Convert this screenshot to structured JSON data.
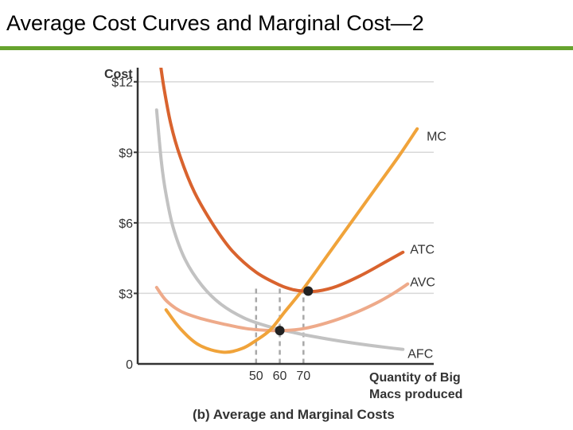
{
  "slide": {
    "title": "Average Cost Curves and Marginal Cost—2",
    "rule_color": "#66a32e"
  },
  "chart_data": {
    "type": "line",
    "title": "(b) Average and Marginal Costs",
    "ylabel": "Cost",
    "xlabel_lines": [
      "Quantity of Big",
      "Macs produced"
    ],
    "xlim": [
      0,
      125
    ],
    "ylim": [
      0,
      12.6
    ],
    "yticks": [
      {
        "value": 0,
        "label": "0"
      },
      {
        "value": 3,
        "label": "$3"
      },
      {
        "value": 6,
        "label": "$6"
      },
      {
        "value": 9,
        "label": "$9"
      },
      {
        "value": 12,
        "label": "$12"
      }
    ],
    "xticks": [
      {
        "value": 50,
        "label": "50"
      },
      {
        "value": 60,
        "label": "60"
      },
      {
        "value": 70,
        "label": "70"
      }
    ],
    "grid": "horizontal",
    "series": [
      {
        "name": "MC",
        "color": "#f0a33a",
        "width": 4,
        "points": [
          [
            12,
            2.3
          ],
          [
            18,
            1.5
          ],
          [
            26,
            0.8
          ],
          [
            36,
            0.5
          ],
          [
            44,
            0.65
          ],
          [
            50,
            1.0
          ],
          [
            56,
            1.45
          ],
          [
            62,
            2.2
          ],
          [
            70,
            3.2
          ],
          [
            80,
            4.6
          ],
          [
            90,
            6.0
          ],
          [
            100,
            7.4
          ],
          [
            110,
            8.8
          ],
          [
            118,
            10.0
          ]
        ]
      },
      {
        "name": "ATC",
        "color": "#d9632e",
        "width": 4,
        "points": [
          [
            9,
            13.2
          ],
          [
            11,
            11.8
          ],
          [
            14,
            10.2
          ],
          [
            18,
            8.8
          ],
          [
            24,
            7.3
          ],
          [
            32,
            5.9
          ],
          [
            40,
            4.8
          ],
          [
            50,
            3.9
          ],
          [
            60,
            3.35
          ],
          [
            66,
            3.15
          ],
          [
            70,
            3.1
          ],
          [
            76,
            3.1
          ],
          [
            84,
            3.3
          ],
          [
            94,
            3.75
          ],
          [
            104,
            4.3
          ],
          [
            112,
            4.75
          ]
        ]
      },
      {
        "name": "AVC",
        "color": "#eeaa8a",
        "width": 4,
        "points": [
          [
            8,
            3.25
          ],
          [
            12,
            2.7
          ],
          [
            18,
            2.25
          ],
          [
            26,
            1.95
          ],
          [
            36,
            1.7
          ],
          [
            46,
            1.5
          ],
          [
            56,
            1.42
          ],
          [
            62,
            1.42
          ],
          [
            70,
            1.5
          ],
          [
            80,
            1.75
          ],
          [
            90,
            2.1
          ],
          [
            100,
            2.55
          ],
          [
            108,
            3.0
          ],
          [
            114,
            3.4
          ]
        ]
      },
      {
        "name": "AFC",
        "color": "#c2c2c2",
        "width": 4,
        "points": [
          [
            8,
            10.8
          ],
          [
            10,
            8.6
          ],
          [
            12,
            7.2
          ],
          [
            15,
            5.8
          ],
          [
            20,
            4.45
          ],
          [
            27,
            3.35
          ],
          [
            35,
            2.55
          ],
          [
            45,
            1.95
          ],
          [
            55,
            1.6
          ],
          [
            65,
            1.35
          ],
          [
            75,
            1.15
          ],
          [
            90,
            0.9
          ],
          [
            105,
            0.7
          ],
          [
            112,
            0.62
          ]
        ]
      }
    ],
    "labels": [
      {
        "series": "MC",
        "text": "MC",
        "x": 122,
        "y": 9.7
      },
      {
        "series": "ATC",
        "text": "ATC",
        "x": 115,
        "y": 4.9
      },
      {
        "series": "AVC",
        "text": "AVC",
        "x": 115,
        "y": 3.5
      },
      {
        "series": "AFC",
        "text": "AFC",
        "x": 114,
        "y": 0.45
      }
    ],
    "points": [
      {
        "name": "min-atc",
        "x": 72,
        "y": 3.1,
        "color": "#222222"
      },
      {
        "name": "min-avc",
        "x": 60,
        "y": 1.42,
        "color": "#222222"
      }
    ],
    "guides": [
      {
        "x": 50,
        "y": 3.2
      },
      {
        "x": 60,
        "y": 3.2
      },
      {
        "x": 70,
        "y": 3.2
      }
    ],
    "axis_color": "#333333",
    "grid_color": "#d8d8d8",
    "guide_color": "#a8a8a8"
  }
}
